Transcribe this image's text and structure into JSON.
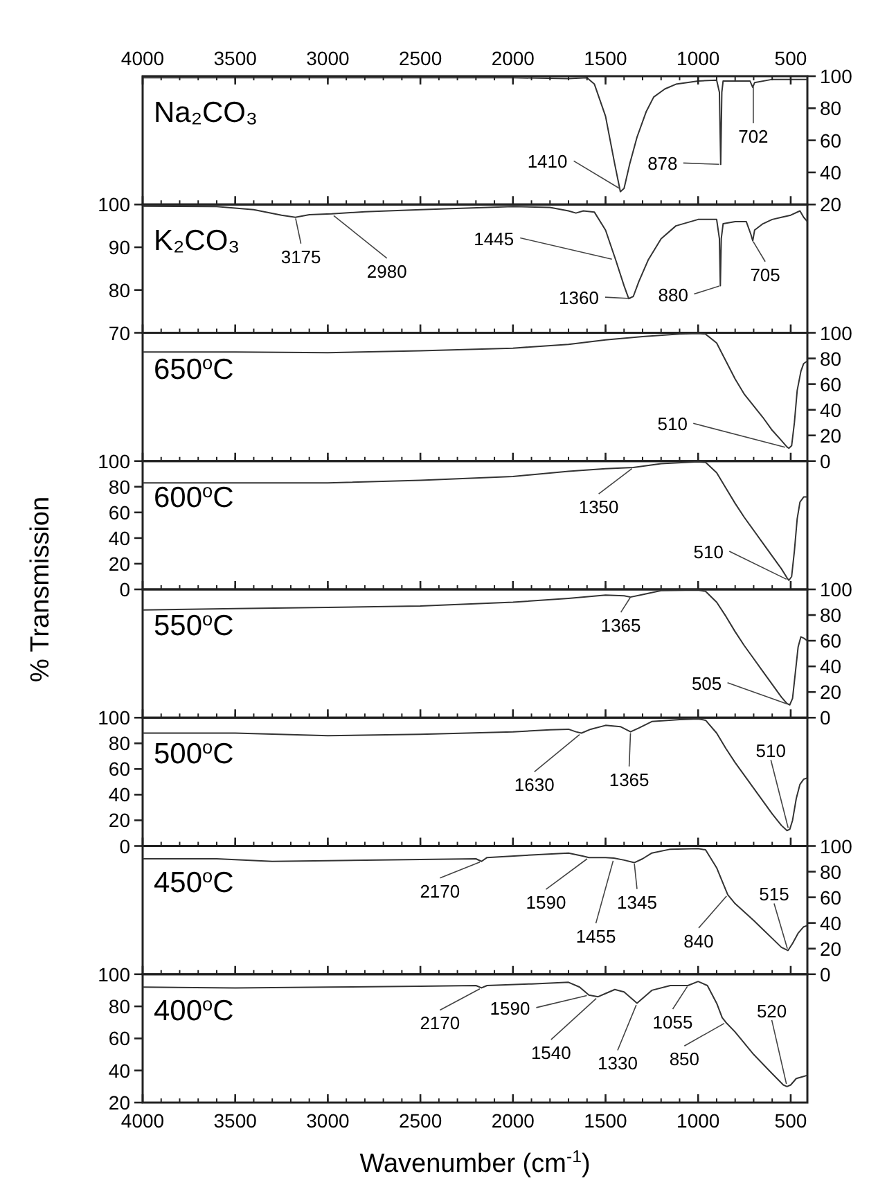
{
  "chart_data": [
    {
      "type": "line",
      "title": "Na₂CO₃",
      "color": "#333333",
      "x2lim": [
        4000,
        410
      ],
      "x2ticks": [
        4000,
        3500,
        3000,
        2500,
        2000,
        1500,
        1000,
        500
      ],
      "xlim": [
        4000,
        410
      ],
      "xticks": [
        {
          "value": 4000,
          "label": null
        },
        {
          "value": 3500,
          "label": null
        },
        {
          "value": 3000,
          "label": null
        },
        {
          "value": 2500,
          "label": null
        },
        {
          "value": 2000,
          "label": null
        },
        {
          "value": 1500,
          "label": null
        },
        {
          "value": 1000,
          "label": null
        },
        {
          "value": 500,
          "label": null
        }
      ],
      "ylim": [
        20,
        100
      ],
      "yticks": [
        20,
        40,
        60,
        80,
        100
      ],
      "tick_labels": "y",
      "x": [
        4000,
        3000,
        2000,
        1700,
        1600,
        1560,
        1500,
        1450,
        1420,
        1400,
        1370,
        1330,
        1280,
        1240,
        1180,
        1120,
        1000,
        900,
        885,
        878,
        872,
        865,
        800,
        720,
        705,
        695,
        600,
        500,
        410
      ],
      "values": [
        99,
        99,
        99,
        98.5,
        99,
        95,
        75,
        45,
        28,
        30,
        45,
        62,
        78,
        87,
        92,
        95,
        97,
        97.5,
        90,
        45,
        90,
        97,
        97,
        97,
        93,
        96,
        98,
        98,
        98
      ],
      "annotations": [
        {
          "text": "1410",
          "x": 1410,
          "y": 29
        },
        {
          "text": "878",
          "x": 878,
          "y": 45
        },
        {
          "text": "702",
          "x": 702,
          "y": 94
        }
      ]
    },
    {
      "type": "line",
      "title": "K₂CO₃",
      "color": "#333333",
      "xlim": [
        4000,
        410
      ],
      "xticks": [
        {
          "value": 4000,
          "label": null
        },
        {
          "value": 3500,
          "label": null
        },
        {
          "value": 3000,
          "label": null
        },
        {
          "value": 2500,
          "label": null
        },
        {
          "value": 2000,
          "label": null
        },
        {
          "value": 1500,
          "label": null
        },
        {
          "value": 1000,
          "label": null
        },
        {
          "value": 500,
          "label": null
        }
      ],
      "ylim": [
        70,
        100
      ],
      "yticks": [
        70,
        80,
        90,
        100
      ],
      "tick_labels": "y",
      "x": [
        4000,
        3600,
        3400,
        3250,
        3175,
        3100,
        2980,
        2800,
        2500,
        2000,
        1800,
        1700,
        1660,
        1620,
        1560,
        1500,
        1445,
        1400,
        1375,
        1350,
        1320,
        1270,
        1200,
        1120,
        1000,
        900,
        885,
        880,
        875,
        865,
        800,
        740,
        715,
        705,
        695,
        650,
        600,
        550,
        500,
        450,
        430,
        410
      ],
      "values": [
        99.6,
        99.5,
        98.8,
        97.5,
        97,
        97.6,
        97.8,
        98.3,
        98.8,
        99.5,
        99.3,
        98.5,
        98,
        98.5,
        98.2,
        94,
        87,
        81,
        78,
        78.5,
        82,
        87,
        92,
        95,
        96.5,
        96.5,
        92,
        81,
        92,
        95.5,
        96,
        96,
        93,
        91.5,
        94,
        95.5,
        96.5,
        97,
        97.5,
        98.5,
        97,
        96
      ],
      "annotations": [
        {
          "text": "3175",
          "x": 3175,
          "y": 97
        },
        {
          "text": "2980",
          "x": 2980,
          "y": 97.8
        },
        {
          "text": "1445",
          "x": 1445,
          "y": 87
        },
        {
          "text": "1360",
          "x": 1360,
          "y": 78
        },
        {
          "text": "880",
          "x": 880,
          "y": 81
        },
        {
          "text": "705",
          "x": 705,
          "y": 91.5
        }
      ]
    },
    {
      "type": "line",
      "title": "650$^{o}$C",
      "color": "#333333",
      "xlim": [
        4000,
        410
      ],
      "xticks": [
        {
          "value": 4000,
          "label": null
        },
        {
          "value": 3500,
          "label": null
        },
        {
          "value": 3000,
          "label": null
        },
        {
          "value": 2500,
          "label": null
        },
        {
          "value": 2000,
          "label": null
        },
        {
          "value": 1500,
          "label": null
        },
        {
          "value": 1000,
          "label": null
        },
        {
          "value": 500,
          "label": null
        }
      ],
      "ylim": [
        0,
        100
      ],
      "yticks": [
        0,
        20,
        40,
        60,
        80,
        100
      ],
      "tick_labels": "y",
      "x": [
        4000,
        3500,
        3000,
        2500,
        2000,
        1700,
        1500,
        1300,
        1100,
        1000,
        960,
        900,
        850,
        800,
        750,
        700,
        650,
        600,
        550,
        520,
        510,
        495,
        480,
        465,
        445,
        430,
        410
      ],
      "values": [
        85,
        85,
        84.5,
        86,
        88,
        91,
        94.5,
        97,
        99,
        99.5,
        99,
        92,
        78,
        64,
        52,
        43,
        34,
        24,
        16,
        11,
        10,
        12,
        30,
        55,
        70,
        76,
        78
      ],
      "annotations": [
        {
          "text": "510",
          "x": 510,
          "y": 10
        }
      ]
    },
    {
      "type": "line",
      "title": "600$^{o}$C",
      "color": "#333333",
      "xlim": [
        4000,
        410
      ],
      "xticks": [
        {
          "value": 4000,
          "label": null
        },
        {
          "value": 3500,
          "label": null
        },
        {
          "value": 3000,
          "label": null
        },
        {
          "value": 2500,
          "label": null
        },
        {
          "value": 2000,
          "label": null
        },
        {
          "value": 1500,
          "label": null
        },
        {
          "value": 1000,
          "label": null
        },
        {
          "value": 500,
          "label": null
        }
      ],
      "ylim": [
        0,
        100
      ],
      "yticks": [
        0,
        20,
        40,
        60,
        80,
        100
      ],
      "tick_labels": "y",
      "x": [
        4000,
        3500,
        3000,
        2500,
        2000,
        1700,
        1500,
        1350,
        1200,
        1000,
        960,
        900,
        850,
        800,
        750,
        700,
        650,
        600,
        550,
        520,
        510,
        495,
        480,
        465,
        450,
        430,
        410
      ],
      "values": [
        83,
        83,
        83,
        85,
        88,
        92,
        94,
        95,
        98,
        99.5,
        99,
        91,
        79,
        67,
        56,
        46,
        36,
        26,
        16,
        9,
        7,
        10,
        30,
        55,
        68,
        72,
        72
      ],
      "annotations": [
        {
          "text": "1350",
          "x": 1350,
          "y": 95
        },
        {
          "text": "510",
          "x": 510,
          "y": 7
        }
      ]
    },
    {
      "type": "line",
      "title": "550$^{o}$C",
      "ylabel": "% Transmission",
      "color": "#333333",
      "xlim": [
        4000,
        410
      ],
      "xticks": [
        {
          "value": 4000,
          "label": null
        },
        {
          "value": 3500,
          "label": null
        },
        {
          "value": 3000,
          "label": null
        },
        {
          "value": 2500,
          "label": null
        },
        {
          "value": 2000,
          "label": null
        },
        {
          "value": 1500,
          "label": null
        },
        {
          "value": 1000,
          "label": null
        },
        {
          "value": 500,
          "label": null
        }
      ],
      "ylim": [
        0,
        100
      ],
      "yticks": [
        0,
        20,
        40,
        60,
        80,
        100
      ],
      "tick_labels": "y",
      "x": [
        4000,
        3500,
        3000,
        2500,
        2000,
        1700,
        1500,
        1400,
        1365,
        1300,
        1200,
        1000,
        960,
        900,
        850,
        800,
        750,
        700,
        650,
        600,
        550,
        520,
        505,
        490,
        475,
        460,
        445,
        430,
        410
      ],
      "values": [
        84,
        85,
        86,
        87,
        90,
        93,
        95.5,
        95,
        94,
        96,
        99,
        99.5,
        98.5,
        90,
        79,
        67,
        56,
        46,
        36,
        26,
        16,
        11,
        10,
        15,
        35,
        55,
        63,
        62,
        60
      ],
      "annotations": [
        {
          "text": "1365",
          "x": 1365,
          "y": 94
        },
        {
          "text": "505",
          "x": 505,
          "y": 10
        }
      ]
    },
    {
      "type": "line",
      "title": "500$^{o}$C",
      "color": "#333333",
      "xlim": [
        4000,
        410
      ],
      "xticks": [
        {
          "value": 4000,
          "label": null
        },
        {
          "value": 3500,
          "label": null
        },
        {
          "value": 3000,
          "label": null
        },
        {
          "value": 2500,
          "label": null
        },
        {
          "value": 2000,
          "label": null
        },
        {
          "value": 1500,
          "label": null
        },
        {
          "value": 1000,
          "label": null
        },
        {
          "value": 500,
          "label": null
        }
      ],
      "ylim": [
        0,
        100
      ],
      "yticks": [
        0,
        20,
        40,
        60,
        80,
        100
      ],
      "tick_labels": "y",
      "x": [
        4000,
        3500,
        3000,
        2500,
        2000,
        1800,
        1700,
        1660,
        1630,
        1580,
        1500,
        1420,
        1365,
        1320,
        1250,
        1100,
        1000,
        960,
        900,
        850,
        800,
        750,
        700,
        650,
        600,
        550,
        520,
        505,
        490,
        470,
        450,
        430,
        410
      ],
      "values": [
        88,
        88,
        86,
        87,
        89,
        90.5,
        91,
        89,
        88,
        91,
        94,
        93,
        89,
        92,
        97,
        98.5,
        99,
        98,
        88,
        76,
        65,
        55,
        45,
        35,
        25,
        16,
        12,
        13,
        20,
        37,
        48,
        52,
        53
      ],
      "annotations": [
        {
          "text": "1630",
          "x": 1630,
          "y": 88
        },
        {
          "text": "1365",
          "x": 1365,
          "y": 89
        },
        {
          "text": "510",
          "x": 510,
          "y": 12
        }
      ]
    },
    {
      "type": "line",
      "title": "450$^{o}$C",
      "color": "#333333",
      "xlim": [
        4000,
        410
      ],
      "xticks": [
        {
          "value": 4000,
          "label": null
        },
        {
          "value": 3500,
          "label": null
        },
        {
          "value": 3000,
          "label": null
        },
        {
          "value": 2500,
          "label": null
        },
        {
          "value": 2000,
          "label": null
        },
        {
          "value": 1500,
          "label": null
        },
        {
          "value": 1000,
          "label": null
        },
        {
          "value": 500,
          "label": null
        }
      ],
      "ylim": [
        0,
        100
      ],
      "yticks": [
        0,
        20,
        40,
        60,
        80,
        100
      ],
      "tick_labels": "y",
      "x": [
        4000,
        3600,
        3300,
        3000,
        2500,
        2200,
        2170,
        2140,
        1900,
        1700,
        1620,
        1590,
        1500,
        1455,
        1400,
        1345,
        1300,
        1250,
        1150,
        1000,
        960,
        900,
        840,
        800,
        700,
        650,
        600,
        550,
        515,
        490,
        460,
        430,
        410
      ],
      "values": [
        90,
        90,
        88,
        88.5,
        89.5,
        90,
        88,
        91,
        93,
        94.5,
        92,
        91,
        91,
        90.5,
        89,
        87,
        90,
        94.5,
        97.5,
        98,
        97,
        83,
        62,
        55,
        42,
        35,
        28,
        21,
        18.5,
        24,
        32,
        37,
        38
      ],
      "annotations": [
        {
          "text": "2170",
          "x": 2170,
          "y": 88
        },
        {
          "text": "1590",
          "x": 1590,
          "y": 91
        },
        {
          "text": "1455",
          "x": 1455,
          "y": 90.5
        },
        {
          "text": "1345",
          "x": 1345,
          "y": 87
        },
        {
          "text": "840",
          "x": 840,
          "y": 62
        },
        {
          "text": "515",
          "x": 515,
          "y": 18.5
        }
      ]
    },
    {
      "type": "line",
      "title": "400$^{o}$C",
      "xlabel": "Wavenumber (cm$^{-1}$)",
      "color": "#333333",
      "xlim": [
        4000,
        410
      ],
      "xticks": [
        4000,
        3500,
        3000,
        2500,
        2000,
        1500,
        1000,
        500
      ],
      "ylim": [
        20,
        100
      ],
      "yticks": [
        20,
        40,
        60,
        80,
        100
      ],
      "x": [
        4000,
        3500,
        3000,
        2500,
        2200,
        2170,
        2140,
        1900,
        1700,
        1640,
        1590,
        1540,
        1500,
        1450,
        1400,
        1330,
        1290,
        1250,
        1150,
        1055,
        1000,
        950,
        900,
        870,
        850,
        800,
        700,
        600,
        540,
        520,
        500,
        470,
        440,
        410
      ],
      "values": [
        92,
        91.5,
        92,
        92.5,
        93,
        91.5,
        93,
        94,
        95,
        92,
        87,
        86,
        88,
        90.5,
        89,
        82,
        86,
        90,
        93,
        93,
        95.5,
        93,
        82,
        73,
        70,
        64,
        50,
        38,
        31,
        30,
        31,
        35,
        36,
        37
      ],
      "annotations": [
        {
          "text": "2170",
          "x": 2170,
          "y": 91.5
        },
        {
          "text": "1590",
          "x": 1590,
          "y": 87
        },
        {
          "text": "1540",
          "x": 1540,
          "y": 86
        },
        {
          "text": "1330",
          "x": 1330,
          "y": 82
        },
        {
          "text": "1055",
          "x": 1055,
          "y": 93
        },
        {
          "text": "850",
          "x": 850,
          "y": 70
        },
        {
          "text": "520",
          "x": 520,
          "y": 30
        }
      ]
    }
  ]
}
